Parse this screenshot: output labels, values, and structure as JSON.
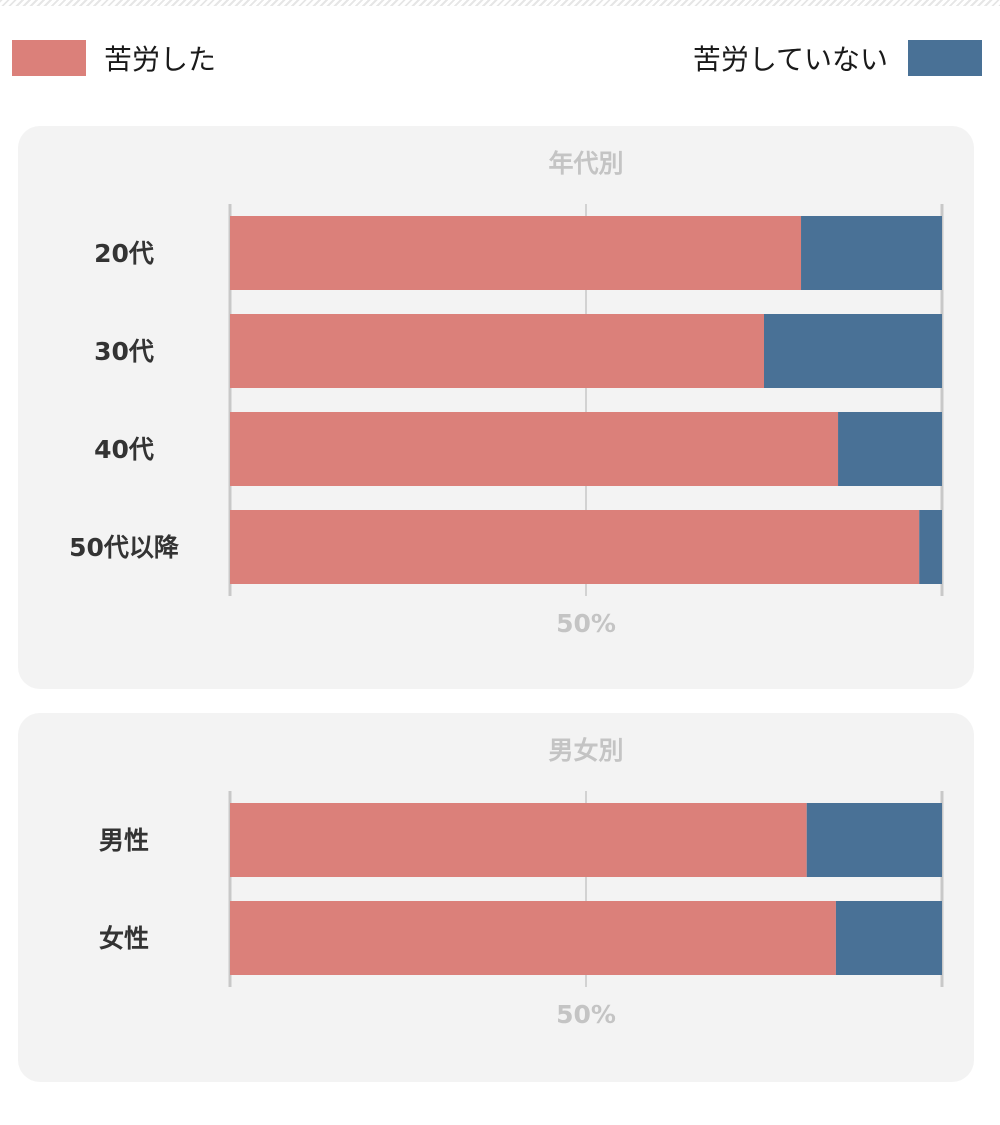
{
  "legend": {
    "left_label": "苦労した",
    "right_label": "苦労していない"
  },
  "colors": {
    "struggled": "#db807a",
    "not_struggled": "#497196",
    "panel_bg": "#f3f3f3",
    "axis": "#c8c8c8",
    "muted_text": "#c4c4c4",
    "label_text": "#333333"
  },
  "chart_data": [
    {
      "type": "bar",
      "stacked": true,
      "orientation": "horizontal",
      "title": "年代別",
      "categories": [
        "20代",
        "30代",
        "40代",
        "50代以降"
      ],
      "series": [
        {
          "name": "苦労した",
          "values": [
            80.2,
            75.0,
            85.4,
            96.8
          ]
        },
        {
          "name": "苦労していない",
          "values": [
            19.8,
            25.0,
            14.6,
            3.2
          ]
        }
      ],
      "xlim": [
        0,
        100
      ],
      "tick_label": "50%",
      "grid": true,
      "legend": "top"
    },
    {
      "type": "bar",
      "stacked": true,
      "orientation": "horizontal",
      "title": "男女別",
      "categories": [
        "男性",
        "女性"
      ],
      "series": [
        {
          "name": "苦労した",
          "values": [
            81.0,
            85.1
          ]
        },
        {
          "name": "苦労していない",
          "values": [
            19.0,
            14.9
          ]
        }
      ],
      "xlim": [
        0,
        100
      ],
      "tick_label": "50%",
      "grid": true,
      "legend": "top"
    }
  ]
}
